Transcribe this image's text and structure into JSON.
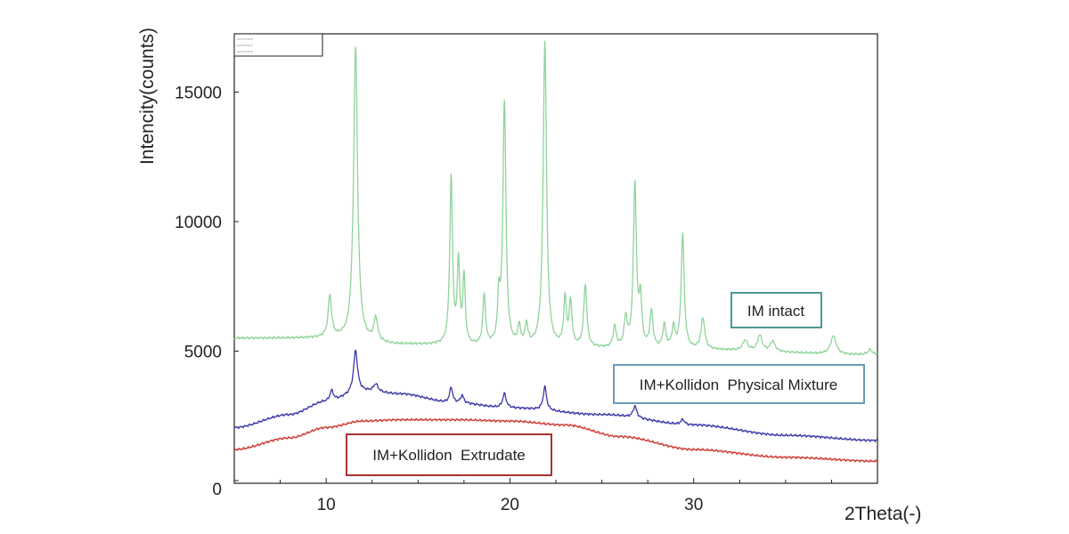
{
  "chart_data": {
    "type": "line",
    "title": "",
    "xlabel": "2Theta(-)",
    "ylabel": "Intencity(counts)",
    "xlim": [
      5,
      40
    ],
    "ylim": [
      0,
      17500
    ],
    "x_ticks": [
      10,
      20,
      30
    ],
    "y_ticks": [
      0,
      5000,
      10000,
      15000
    ],
    "grid": false,
    "legend_position": "top-left",
    "legend_entries": [
      "",
      "",
      ""
    ],
    "annotations": [
      {
        "text": "IM intact",
        "series": 0,
        "border_color": "#4a9a96"
      },
      {
        "text": "IM+Kollidon  Physical Mixture",
        "series": 1,
        "border_color": "#6c9ab8"
      },
      {
        "text": "IM+Kollidon  Extrudate",
        "series": 2,
        "border_color": "#a83232"
      }
    ],
    "series": [
      {
        "color": "#8fd49a",
        "baseline": [
          [
            5,
            5500
          ],
          [
            10,
            5500
          ],
          [
            14,
            5250
          ],
          [
            20,
            5150
          ],
          [
            30,
            5050
          ],
          [
            40,
            4850
          ]
        ],
        "peaks": [
          [
            10.2,
            1600,
            0.11
          ],
          [
            11.6,
            11300,
            0.13
          ],
          [
            12.7,
            900,
            0.12
          ],
          [
            16.8,
            6400,
            0.09
          ],
          [
            17.2,
            3100,
            0.08
          ],
          [
            17.5,
            2600,
            0.08
          ],
          [
            18.6,
            1900,
            0.09
          ],
          [
            19.4,
            1700,
            0.08
          ],
          [
            19.7,
            9400,
            0.1
          ],
          [
            20.5,
            700,
            0.09
          ],
          [
            20.9,
            800,
            0.09
          ],
          [
            21.9,
            11800,
            0.11
          ],
          [
            23.0,
            1800,
            0.09
          ],
          [
            23.3,
            1700,
            0.09
          ],
          [
            24.1,
            2400,
            0.1
          ],
          [
            25.7,
            800,
            0.1
          ],
          [
            26.3,
            1100,
            0.1
          ],
          [
            26.8,
            6300,
            0.1
          ],
          [
            27.1,
            1800,
            0.09
          ],
          [
            27.7,
            1400,
            0.1
          ],
          [
            28.4,
            900,
            0.1
          ],
          [
            28.9,
            800,
            0.1
          ],
          [
            29.4,
            4400,
            0.1
          ],
          [
            30.5,
            1200,
            0.12
          ],
          [
            32.8,
            400,
            0.15
          ],
          [
            33.6,
            600,
            0.15
          ],
          [
            34.3,
            400,
            0.15
          ],
          [
            37.6,
            700,
            0.18
          ],
          [
            39.6,
            200,
            0.15
          ]
        ]
      },
      {
        "color": "#3a36a6",
        "baseline": [
          [
            5,
            2050
          ],
          [
            8,
            2550
          ],
          [
            10,
            3050
          ],
          [
            12,
            3450
          ],
          [
            14,
            3350
          ],
          [
            17,
            3000
          ],
          [
            20,
            2800
          ],
          [
            25,
            2550
          ],
          [
            30,
            2150
          ],
          [
            35,
            1750
          ],
          [
            40,
            1550
          ]
        ],
        "peaks": [
          [
            10.3,
            400,
            0.12
          ],
          [
            11.6,
            1600,
            0.13
          ],
          [
            12.7,
            300,
            0.15
          ],
          [
            16.8,
            600,
            0.1
          ],
          [
            17.4,
            300,
            0.1
          ],
          [
            19.7,
            550,
            0.12
          ],
          [
            21.9,
            900,
            0.11
          ],
          [
            26.8,
            450,
            0.12
          ],
          [
            29.4,
            200,
            0.12
          ]
        ]
      },
      {
        "color": "#cc3a30",
        "baseline": [
          [
            5,
            1200
          ],
          [
            8,
            1650
          ],
          [
            10,
            2050
          ],
          [
            12,
            2300
          ],
          [
            14,
            2350
          ],
          [
            17,
            2350
          ],
          [
            20,
            2300
          ],
          [
            23,
            2150
          ],
          [
            26,
            1700
          ],
          [
            30,
            1200
          ],
          [
            35,
            900
          ],
          [
            40,
            750
          ]
        ],
        "peaks": []
      }
    ]
  }
}
